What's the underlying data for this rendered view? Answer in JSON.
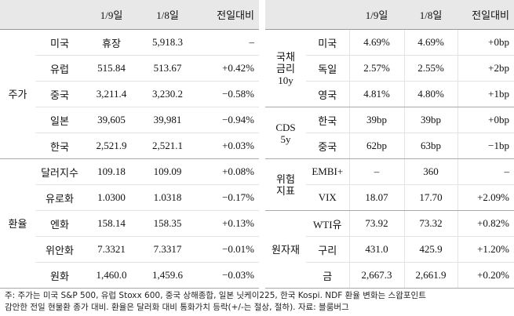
{
  "left_table": {
    "header": [
      "1/9일",
      "1/8일",
      "전일대비"
    ],
    "groups": [
      {
        "label": [
          "주가"
        ],
        "rows": [
          [
            "미국",
            "휴장",
            "5,918.3",
            "–"
          ],
          [
            "유럽",
            "515.84",
            "513.67",
            "+0.42%"
          ],
          [
            "중국",
            "3,211.4",
            "3,230.2",
            "−0.58%"
          ],
          [
            "일본",
            "39,605",
            "39,981",
            "−0.94%"
          ],
          [
            "한국",
            "2,521.9",
            "2,521.1",
            "+0.03%"
          ]
        ]
      },
      {
        "label": [
          "환율"
        ],
        "rows": [
          [
            "달러지수",
            "109.18",
            "109.09",
            "+0.08%"
          ],
          [
            "유로화",
            "1.0300",
            "1.0318",
            "−0.17%"
          ],
          [
            "엔화",
            "158.14",
            "158.35",
            "+0.13%"
          ],
          [
            "위안화",
            "7.3321",
            "7.3317",
            "−0.01%"
          ],
          [
            "원화",
            "1,460.0",
            "1,459.6",
            "−0.03%"
          ]
        ]
      }
    ]
  },
  "right_table": {
    "header": [
      "1/9일",
      "1/8일",
      "전일대비"
    ],
    "groups": [
      {
        "label": [
          "국채",
          "금리",
          "10y"
        ],
        "rows": [
          [
            "미국",
            "4.69%",
            "4.69%",
            "+0bp"
          ],
          [
            "독일",
            "2.57%",
            "2.55%",
            "+2bp"
          ],
          [
            "영국",
            "4.81%",
            "4.80%",
            "+1bp"
          ]
        ]
      },
      {
        "label": [
          "CDS",
          "5y"
        ],
        "rows": [
          [
            "한국",
            "39bp",
            "39bp",
            "+0bp"
          ],
          [
            "중국",
            "62bp",
            "63bp",
            "−1bp"
          ]
        ]
      },
      {
        "label": [
          "위험",
          "지표"
        ],
        "rows": [
          [
            "EMBI+",
            "–",
            "360",
            "–"
          ],
          [
            "VIX",
            "18.07",
            "17.70",
            "+2.09%"
          ]
        ]
      },
      {
        "label": [
          "원자재"
        ],
        "rows": [
          [
            "WTI유",
            "73.92",
            "73.32",
            "+0.82%"
          ],
          [
            "구리",
            "431.0",
            "425.9",
            "+1.20%"
          ],
          [
            "금",
            "2,667.3",
            "2,661.9",
            "+0.20%"
          ]
        ]
      }
    ]
  },
  "note": [
    "주: 주가는 미국 S&P 500, 유럽 Stoxx 600, 중국 상해종합, 일본 닛케이225, 한국 Kospi. NDF 환율 변화는 스왑포인트",
    "감안한 전일 현물환 종가 대비. 환율은 달러화 대비 통화가치 등락(+/-는 절상, 절하). 자료: 블룸버그"
  ]
}
